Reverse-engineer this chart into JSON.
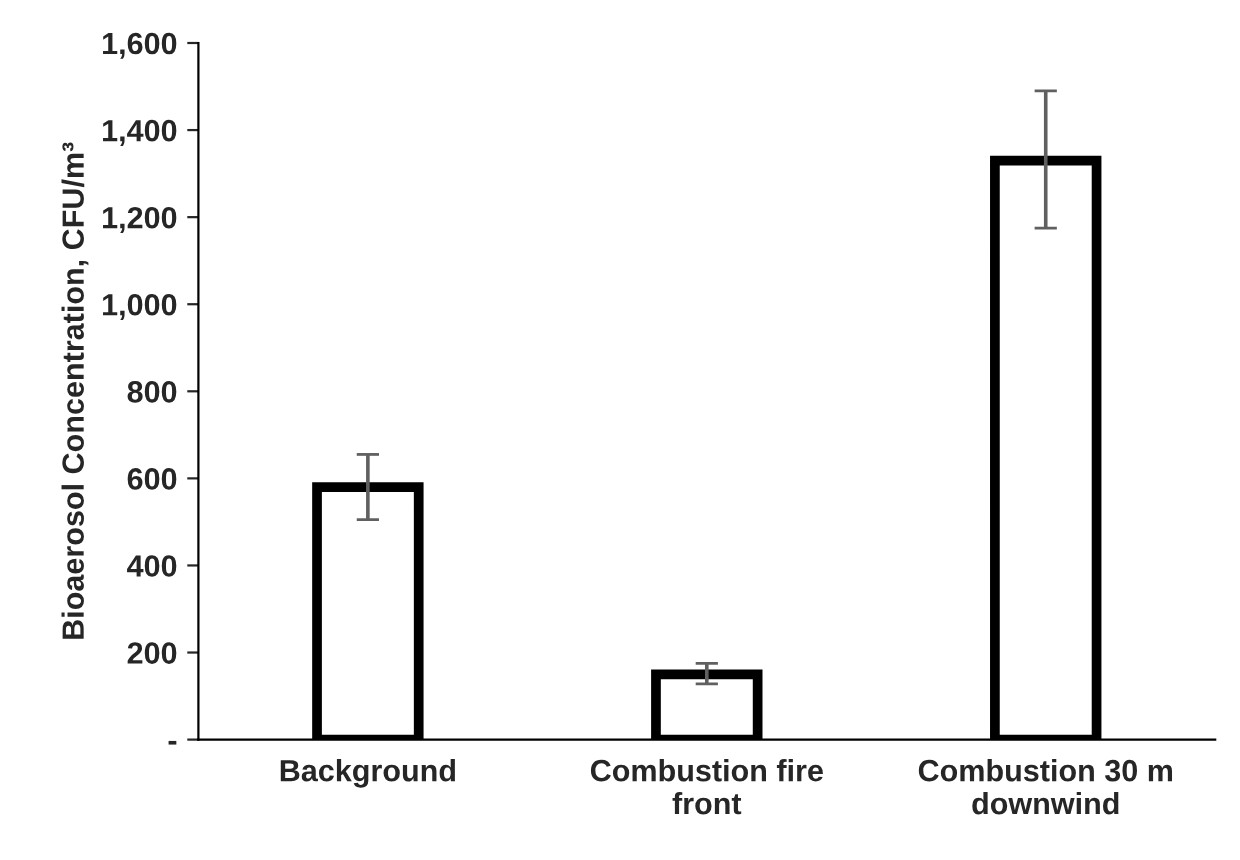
{
  "chart_data": {
    "type": "bar",
    "ylabel": "Bioaerosol Concentration, CFU/m³",
    "categories": [
      "Background",
      "Combustion fire front",
      "Combustion 30 m downwind"
    ],
    "series": [
      {
        "color": "#ffffff",
        "values": [
          580,
          150,
          1330
        ],
        "errors": [
          [
            505,
            655
          ],
          [
            128,
            175
          ],
          [
            1175,
            1490
          ]
        ]
      }
    ],
    "ylim": [
      0,
      1600
    ],
    "yticks": [
      {
        "value": 0,
        "label": "-"
      },
      {
        "value": 200,
        "label": "200"
      },
      {
        "value": 400,
        "label": "400"
      },
      {
        "value": 600,
        "label": "600"
      },
      {
        "value": 800,
        "label": "800"
      },
      {
        "value": 1000,
        "label": "1,000"
      },
      {
        "value": 1200,
        "label": "1,200"
      },
      {
        "value": 1400,
        "label": "1,400"
      },
      {
        "value": 1600,
        "label": "1,600"
      }
    ],
    "grid": false,
    "legend": false
  }
}
